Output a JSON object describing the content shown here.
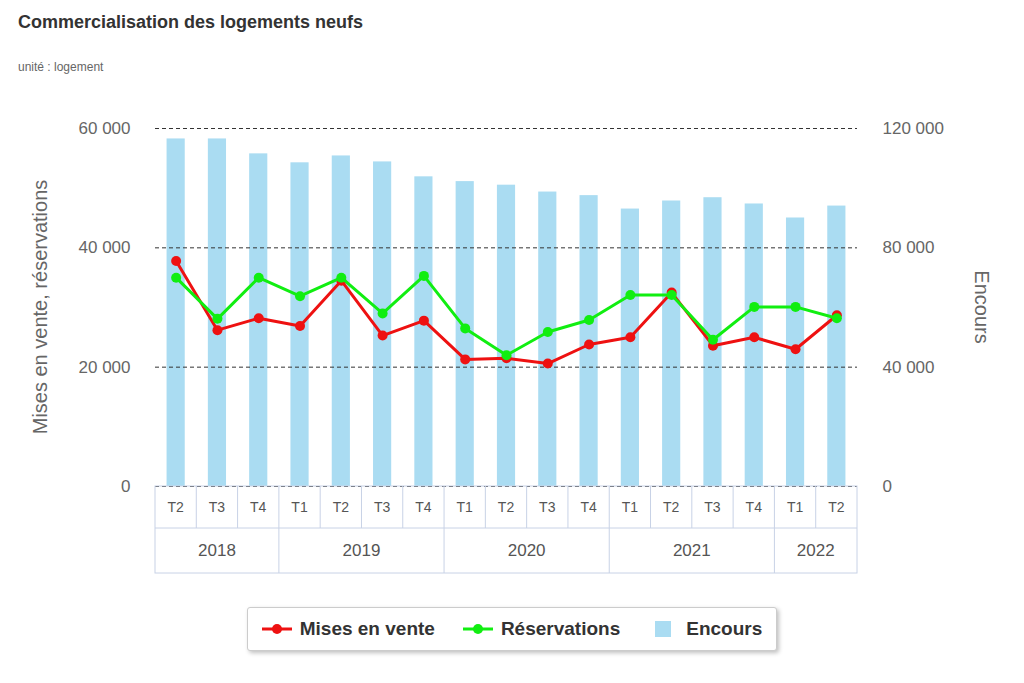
{
  "chart_data": {
    "type": "combo",
    "title": "Commercialisation des logements neufs",
    "subtitle": "unité : logement",
    "y_label": "Mises en vente, réservations",
    "y2_label": "Encours",
    "categories": [
      "T2",
      "T3",
      "T4",
      "T1",
      "T2",
      "T3",
      "T4",
      "T1",
      "T2",
      "T3",
      "T4",
      "T1",
      "T2",
      "T3",
      "T4",
      "T1",
      "T2"
    ],
    "category_groups": [
      "2018",
      "2018",
      "2018",
      "2019",
      "2019",
      "2019",
      "2019",
      "2020",
      "2020",
      "2020",
      "2020",
      "2021",
      "2021",
      "2021",
      "2021",
      "2022",
      "2022"
    ],
    "series": [
      {
        "name": "Mises en vente",
        "type": "line",
        "marker": "circle",
        "color": "#ee1111",
        "values": [
          37800,
          26200,
          28200,
          26900,
          34500,
          25300,
          27800,
          21300,
          21500,
          20600,
          23800,
          25000,
          32500,
          23600,
          25000,
          23000,
          28700
        ]
      },
      {
        "name": "Réservations",
        "type": "line",
        "marker": "circle",
        "color": "#11ee11",
        "values": [
          35000,
          28100,
          35000,
          31900,
          35000,
          29000,
          35300,
          26500,
          22000,
          25900,
          27900,
          32100,
          32100,
          24600,
          30100,
          30100,
          28200
        ]
      },
      {
        "name": "Encours",
        "type": "bar",
        "axis": "y2",
        "color": "#aadcf2",
        "values": [
          116500,
          116500,
          111500,
          108500,
          110800,
          108800,
          103800,
          102200,
          101000,
          98700,
          97500,
          93000,
          95700,
          96800,
          94700,
          90000,
          94000
        ]
      }
    ],
    "ylim": [
      0,
      60000
    ],
    "yticks": [
      0,
      {
        "value": 20000,
        "label": "20 000"
      },
      {
        "value": 40000,
        "label": "40 000"
      },
      {
        "value": 60000,
        "label": "60 000"
      }
    ],
    "y2lim": [
      0,
      120000
    ],
    "y2ticks": [
      0,
      {
        "value": 40000,
        "label": "40 000"
      },
      {
        "value": 80000,
        "label": "80 000"
      },
      {
        "value": 120000,
        "label": "120 000"
      }
    ],
    "grid": true,
    "legend": "bottom"
  }
}
